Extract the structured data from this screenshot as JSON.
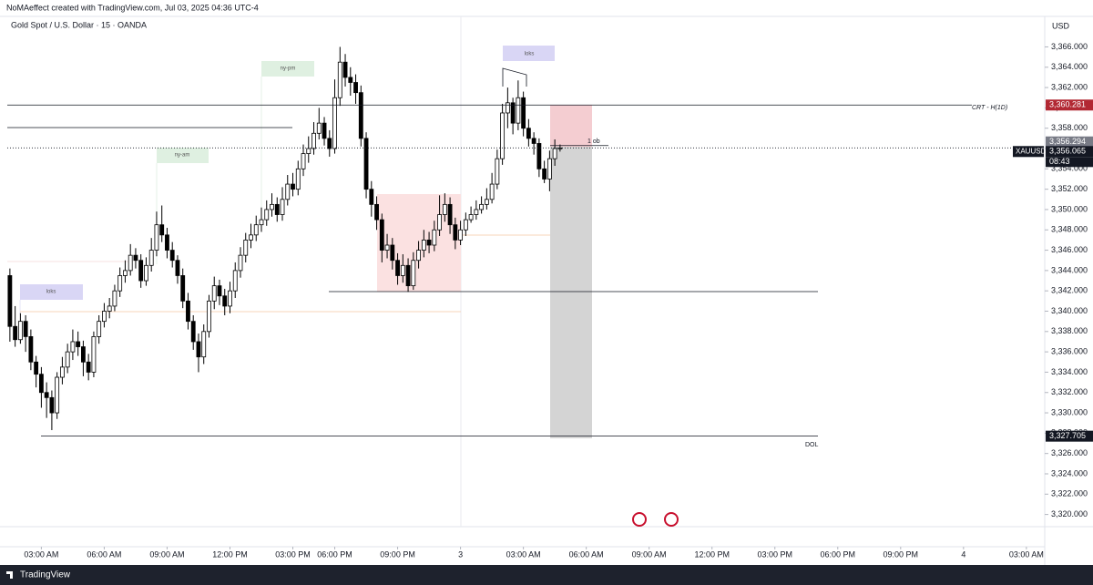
{
  "header": {
    "credit": "NoMAeffect created with TradingView.com, Jul 03, 2025 04:36 UTC-4",
    "currency": "USD",
    "symbol": "XAUUSD",
    "countdown": "08:43"
  },
  "footer": {
    "brand": "TradingView"
  },
  "chart_data": {
    "type": "candlestick",
    "title": "Gold Spot / U.S. Dollar · 15 · OANDA",
    "up_color": "#ffffff",
    "down_color": "#000000",
    "wick_color": "#000000",
    "open": [
      3343.5,
      3338.5,
      3337.2,
      3339.0,
      3337.5,
      3335.0,
      3333.8,
      3332.0,
      3331.5,
      3330.0,
      3333.5,
      3334.5,
      3336.0,
      3337.0,
      3336.5,
      3335.0,
      3334.0,
      3337.5,
      3339.0,
      3340.0,
      3340.5,
      3342.0,
      3343.5,
      3344.0,
      3345.5,
      3345.0,
      3343.0,
      3344.5,
      3346.0,
      3348.5,
      3347.5,
      3346.0,
      3345.0,
      3343.5,
      3341.0,
      3339.0,
      3337.0,
      3335.5,
      3338.0,
      3341.0,
      3342.5,
      3341.5,
      3340.5,
      3342.0,
      3344.0,
      3345.5,
      3347.0,
      3347.5,
      3348.5,
      3349.0,
      3350.0,
      3350.5,
      3349.5,
      3351.0,
      3352.5,
      3352.0,
      3354.0,
      3355.5,
      3356.0,
      3357.5,
      3358.5,
      3357.0,
      3356.0,
      3361.0,
      3364.5,
      3363.0,
      3362.5,
      3361.5,
      3357.0,
      3352.0,
      3350.5,
      3349.0,
      3346.0,
      3346.5,
      3345.0,
      3343.5,
      3344.5,
      3342.5,
      3345.0,
      3346.0,
      3347.0,
      3346.5,
      3348.0,
      3349.5,
      3350.5,
      3348.5,
      3347.0,
      3348.0,
      3349.0,
      3349.5,
      3350.0,
      3350.5,
      3351.0,
      3352.5,
      3355.0,
      3359.5,
      3360.5,
      3358.5,
      3361.0,
      3358.0,
      3357.0,
      3356.5,
      3354.0,
      3353.0,
      3355.0,
      3356.0
    ],
    "high": [
      3344.2,
      3340.5,
      3339.8,
      3339.6,
      3338.2,
      3335.6,
      3334.5,
      3333.0,
      3332.2,
      3334.0,
      3335.5,
      3336.8,
      3338.2,
      3338.0,
      3337.1,
      3335.8,
      3338.0,
      3339.6,
      3340.8,
      3341.3,
      3342.6,
      3344.3,
      3345.0,
      3346.6,
      3346.2,
      3345.6,
      3345.3,
      3347.2,
      3349.8,
      3350.4,
      3348.2,
      3346.8,
      3345.5,
      3344.2,
      3341.8,
      3339.6,
      3337.8,
      3338.7,
      3341.6,
      3343.4,
      3343.1,
      3342.2,
      3342.9,
      3344.8,
      3346.3,
      3347.7,
      3348.6,
      3349.4,
      3350.2,
      3350.9,
      3351.6,
      3351.2,
      3352.2,
      3353.4,
      3353.6,
      3354.8,
      3356.4,
      3357.2,
      3358.6,
      3360.0,
      3359.1,
      3357.8,
      3362.8,
      3366.0,
      3365.3,
      3364.0,
      3363.3,
      3362.2,
      3357.6,
      3352.8,
      3351.3,
      3349.6,
      3347.6,
      3347.2,
      3345.7,
      3345.6,
      3345.2,
      3345.8,
      3346.9,
      3348.0,
      3347.8,
      3348.9,
      3351.4,
      3351.6,
      3351.2,
      3349.2,
      3348.9,
      3349.7,
      3350.3,
      3350.9,
      3351.3,
      3352.1,
      3353.6,
      3355.9,
      3360.4,
      3362.0,
      3361.0,
      3362.7,
      3361.6,
      3358.9,
      3357.6,
      3357.0,
      3354.8,
      3355.8,
      3356.9,
      3356.4
    ],
    "low": [
      3337.0,
      3336.5,
      3336.8,
      3336.0,
      3334.2,
      3332.5,
      3330.5,
      3329.5,
      3328.3,
      3329.4,
      3332.8,
      3333.9,
      3335.2,
      3335.6,
      3333.6,
      3333.2,
      3333.5,
      3336.8,
      3338.4,
      3339.3,
      3340.0,
      3341.4,
      3342.8,
      3343.5,
      3344.2,
      3342.3,
      3342.5,
      3343.9,
      3345.4,
      3346.8,
      3345.2,
      3344.3,
      3342.7,
      3340.3,
      3338.2,
      3336.2,
      3334.0,
      3334.8,
      3337.4,
      3340.2,
      3340.6,
      3339.6,
      3339.8,
      3341.3,
      3343.3,
      3344.8,
      3346.2,
      3346.9,
      3347.8,
      3348.4,
      3349.3,
      3348.8,
      3348.9,
      3350.4,
      3351.3,
      3351.4,
      3353.3,
      3354.6,
      3355.4,
      3356.9,
      3356.3,
      3355.2,
      3355.5,
      3360.2,
      3362.1,
      3361.2,
      3360.4,
      3356.2,
      3351.1,
      3349.3,
      3348.0,
      3344.8,
      3345.2,
      3344.1,
      3342.6,
      3342.8,
      3341.9,
      3342.1,
      3344.2,
      3345.3,
      3345.7,
      3345.9,
      3347.4,
      3348.8,
      3347.6,
      3346.1,
      3346.5,
      3347.4,
      3348.7,
      3349.0,
      3349.6,
      3350.0,
      3350.6,
      3352.0,
      3354.4,
      3358.0,
      3357.4,
      3357.8,
      3357.2,
      3356.2,
      3355.4,
      3353.2,
      3352.6,
      3351.8,
      3354.3,
      3355.7
    ],
    "close": [
      3338.5,
      3337.2,
      3339.0,
      3337.5,
      3335.0,
      3333.8,
      3332.0,
      3331.5,
      3330.0,
      3333.5,
      3334.5,
      3336.0,
      3337.0,
      3336.5,
      3335.0,
      3334.0,
      3337.5,
      3339.0,
      3340.0,
      3340.5,
      3342.0,
      3343.5,
      3344.0,
      3345.5,
      3345.0,
      3343.0,
      3344.5,
      3346.0,
      3348.5,
      3347.5,
      3346.0,
      3345.0,
      3343.5,
      3341.0,
      3339.0,
      3337.0,
      3335.5,
      3338.0,
      3341.0,
      3342.5,
      3341.5,
      3340.5,
      3342.0,
      3344.0,
      3345.5,
      3347.0,
      3347.5,
      3348.5,
      3349.0,
      3350.0,
      3350.5,
      3349.5,
      3351.0,
      3352.5,
      3352.0,
      3354.0,
      3355.5,
      3356.0,
      3357.5,
      3358.5,
      3357.0,
      3356.0,
      3361.0,
      3364.5,
      3363.0,
      3362.5,
      3361.5,
      3357.0,
      3352.0,
      3350.5,
      3349.0,
      3346.0,
      3346.5,
      3345.0,
      3343.5,
      3344.5,
      3342.5,
      3345.0,
      3346.0,
      3347.0,
      3346.5,
      3348.0,
      3349.5,
      3350.5,
      3348.5,
      3347.0,
      3348.0,
      3349.0,
      3349.5,
      3350.0,
      3350.5,
      3351.0,
      3352.5,
      3355.0,
      3359.5,
      3360.5,
      3358.5,
      3361.0,
      3358.0,
      3357.0,
      3356.5,
      3354.0,
      3353.0,
      3355.0,
      3356.0,
      3356.065
    ],
    "xlim": [
      -0.5,
      197.5
    ],
    "xticks": [
      {
        "value": 6,
        "label": "03:00 AM"
      },
      {
        "value": 18,
        "label": "06:00 AM"
      },
      {
        "value": 30,
        "label": "09:00 AM"
      },
      {
        "value": 42,
        "label": "12:00 PM"
      },
      {
        "value": 54,
        "label": "03:00 PM"
      },
      {
        "value": 62,
        "label": "06:00 PM"
      },
      {
        "value": 74,
        "label": "09:00 PM"
      },
      {
        "value": 86,
        "label": "3"
      },
      {
        "value": 98,
        "label": "03:00 AM"
      },
      {
        "value": 110,
        "label": "06:00 AM"
      },
      {
        "value": 122,
        "label": "09:00 AM"
      },
      {
        "value": 134,
        "label": "12:00 PM"
      },
      {
        "value": 146,
        "label": "03:00 PM"
      },
      {
        "value": 158,
        "label": "06:00 PM"
      },
      {
        "value": 170,
        "label": "09:00 PM"
      },
      {
        "value": 182,
        "label": "4"
      },
      {
        "value": 194,
        "label": "03:00 AM"
      }
    ],
    "ylim": [
      3318.8,
      3369.0
    ],
    "yticks": [
      {
        "value": 3320,
        "label": "3,320.000"
      },
      {
        "value": 3322,
        "label": "3,322.000"
      },
      {
        "value": 3324,
        "label": "3,324.000"
      },
      {
        "value": 3326,
        "label": "3,326.000"
      },
      {
        "value": 3328,
        "label": "3,328.000"
      },
      {
        "value": 3330,
        "label": "3,330.000"
      },
      {
        "value": 3332,
        "label": "3,332.000"
      },
      {
        "value": 3334,
        "label": "3,334.000"
      },
      {
        "value": 3336,
        "label": "3,336.000"
      },
      {
        "value": 3338,
        "label": "3,338.000"
      },
      {
        "value": 3340,
        "label": "3,340.000"
      },
      {
        "value": 3342,
        "label": "3,342.000"
      },
      {
        "value": 3344,
        "label": "3,344.000"
      },
      {
        "value": 3346,
        "label": "3,346.000"
      },
      {
        "value": 3348,
        "label": "3,348.000"
      },
      {
        "value": 3350,
        "label": "3,350.000"
      },
      {
        "value": 3352,
        "label": "3,352.000"
      },
      {
        "value": 3354,
        "label": "3,354.000"
      },
      {
        "value": 3356,
        "label": "3,356.000"
      },
      {
        "value": 3358,
        "label": "3,358.000"
      },
      {
        "value": 3360,
        "label": "3,360.000"
      },
      {
        "value": 3362,
        "label": "3,362.000"
      },
      {
        "value": 3364,
        "label": "3,364.000"
      },
      {
        "value": 3366,
        "label": "3,366.000"
      }
    ],
    "price_labels": [
      {
        "value": 3360.281,
        "label": "3,360.281",
        "color": "#b22833"
      },
      {
        "value": 3356.294,
        "label": "3,356.294",
        "color": "#787b86"
      },
      {
        "value": 3356.065,
        "label": "3,356.065",
        "color": "#131722"
      },
      {
        "value": 3327.705,
        "label": "3,327.705",
        "color": "#131722"
      }
    ],
    "annotations": [
      "loks",
      "ny-am",
      "ny-pm",
      "loks",
      "1 ob",
      "CRT - H(1D)",
      "DOL"
    ]
  }
}
